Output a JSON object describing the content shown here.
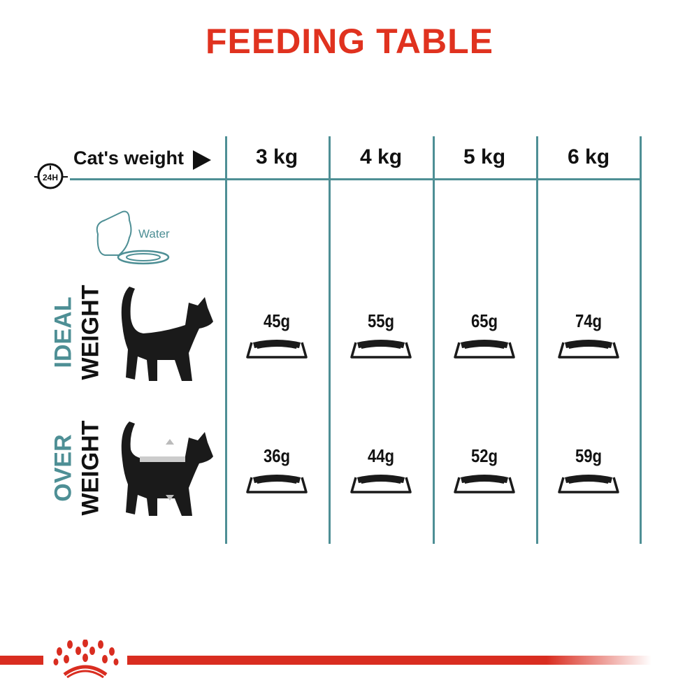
{
  "title": "FEEDING TABLE",
  "header": {
    "icon": "24h-clock-icon",
    "clock_text": "24H",
    "weight_label": "Cat's weight",
    "arrow": "play-arrow-icon",
    "columns": [
      "3 kg",
      "4 kg",
      "5 kg",
      "6 kg"
    ]
  },
  "water": {
    "label": "Water",
    "icon": "water-bowl-icon"
  },
  "rows": [
    {
      "label_top": "IDEAL",
      "label_bottom": "WEIGHT",
      "icon": "cat-silhouette-icon",
      "values": [
        "45g",
        "55g",
        "65g",
        "74g"
      ]
    },
    {
      "label_top": "OVER",
      "label_bottom": "WEIGHT",
      "icon": "overweight-cat-icon",
      "values": [
        "36g",
        "44g",
        "52g",
        "59g"
      ]
    }
  ],
  "colors": {
    "title": "#e0321f",
    "grid": "#4e8f95",
    "brand": "#d92d20"
  },
  "brand": {
    "logo": "royal-canin-crown-logo"
  }
}
